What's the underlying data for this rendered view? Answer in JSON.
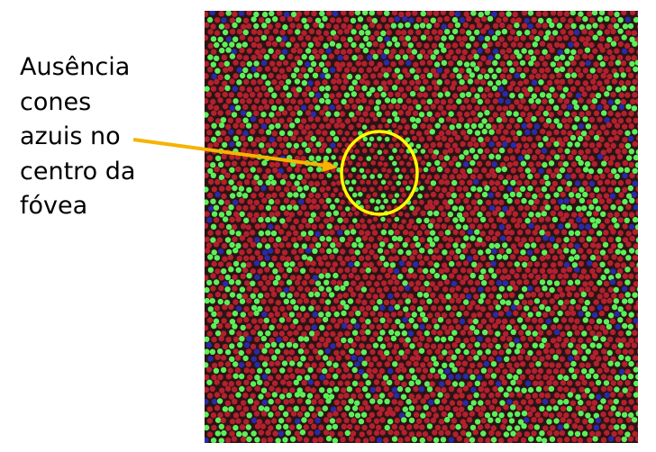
{
  "annotation": {
    "lines": [
      "Ausência",
      "cones",
      "azuis no",
      "centro da",
      "fóvea"
    ]
  },
  "colors": {
    "arrow": "#f5b400",
    "circle": "#ffff00",
    "red_cone": "#b3202e",
    "green_cone": "#5cf05a",
    "blue_cone": "#2a2aa8",
    "background": "#2a1414"
  }
}
